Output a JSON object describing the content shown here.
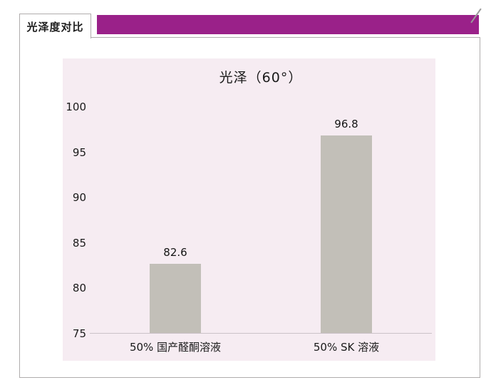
{
  "page": {
    "tab_label": "光泽度对比"
  },
  "colors": {
    "accent_purple": "#9A2189",
    "panel_pink": "#F6ECF2",
    "bar_gray": "#C2BFB8",
    "border_gray": "#B0ADAD",
    "axis_line": "#CBC2C8",
    "text_dark": "#1F1F1F"
  },
  "chart_data": {
    "type": "bar",
    "title": "光泽（60°）",
    "categories": [
      "50% 国产醛酮溶液",
      "50% SK 溶液"
    ],
    "values": [
      82.6,
      96.8
    ],
    "value_labels": [
      "82.6",
      "96.8"
    ],
    "ylabel": "",
    "xlabel": "",
    "ylim": [
      75,
      100
    ],
    "yticks": [
      75,
      80,
      85,
      90,
      95,
      100
    ],
    "grid": false,
    "legend": "none",
    "background": "#F6ECF2"
  }
}
